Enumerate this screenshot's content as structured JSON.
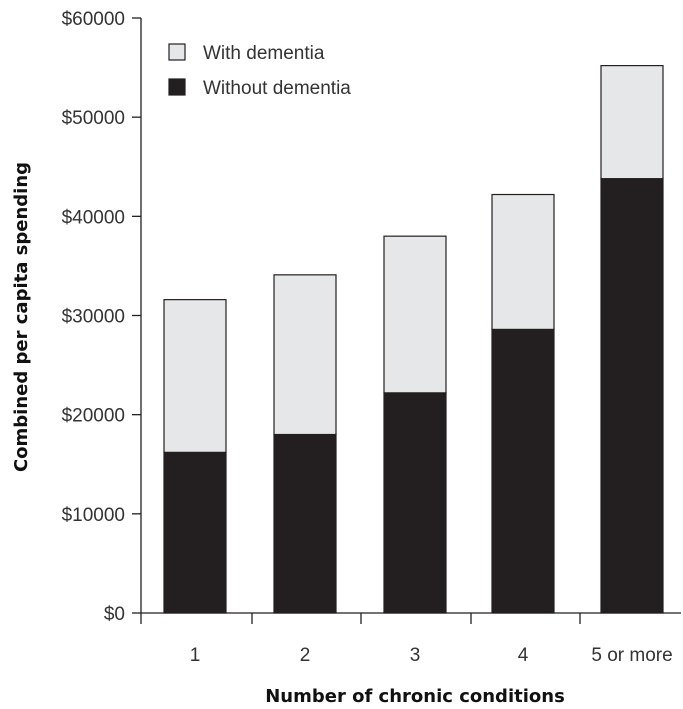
{
  "chart_data": {
    "type": "bar",
    "stacked": true,
    "xlabel": "Number of chronic conditions",
    "ylabel": "Combined per capita spending",
    "categories": [
      "1",
      "2",
      "3",
      "4",
      "5 or more"
    ],
    "series": [
      {
        "name": "Without dementia",
        "values": [
          16200,
          18000,
          22200,
          28600,
          43800
        ],
        "color": "#231f20"
      },
      {
        "name": "With dementia",
        "values": [
          15400,
          16100,
          15800,
          13600,
          11400
        ],
        "color": "#e6e7e8"
      }
    ],
    "ylim": [
      0,
      60000
    ],
    "yticks": [
      0,
      10000,
      20000,
      30000,
      40000,
      50000,
      60000
    ],
    "ytick_labels": [
      "$0",
      "$10000",
      "$20000",
      "$30000",
      "$40000",
      "$50000",
      "$60000"
    ],
    "legend": {
      "placement": "top-left",
      "entries": [
        {
          "label": "With dementia",
          "color": "#e6e7e8"
        },
        {
          "label": "Without dementia",
          "color": "#231f20"
        }
      ]
    },
    "grid": false
  }
}
